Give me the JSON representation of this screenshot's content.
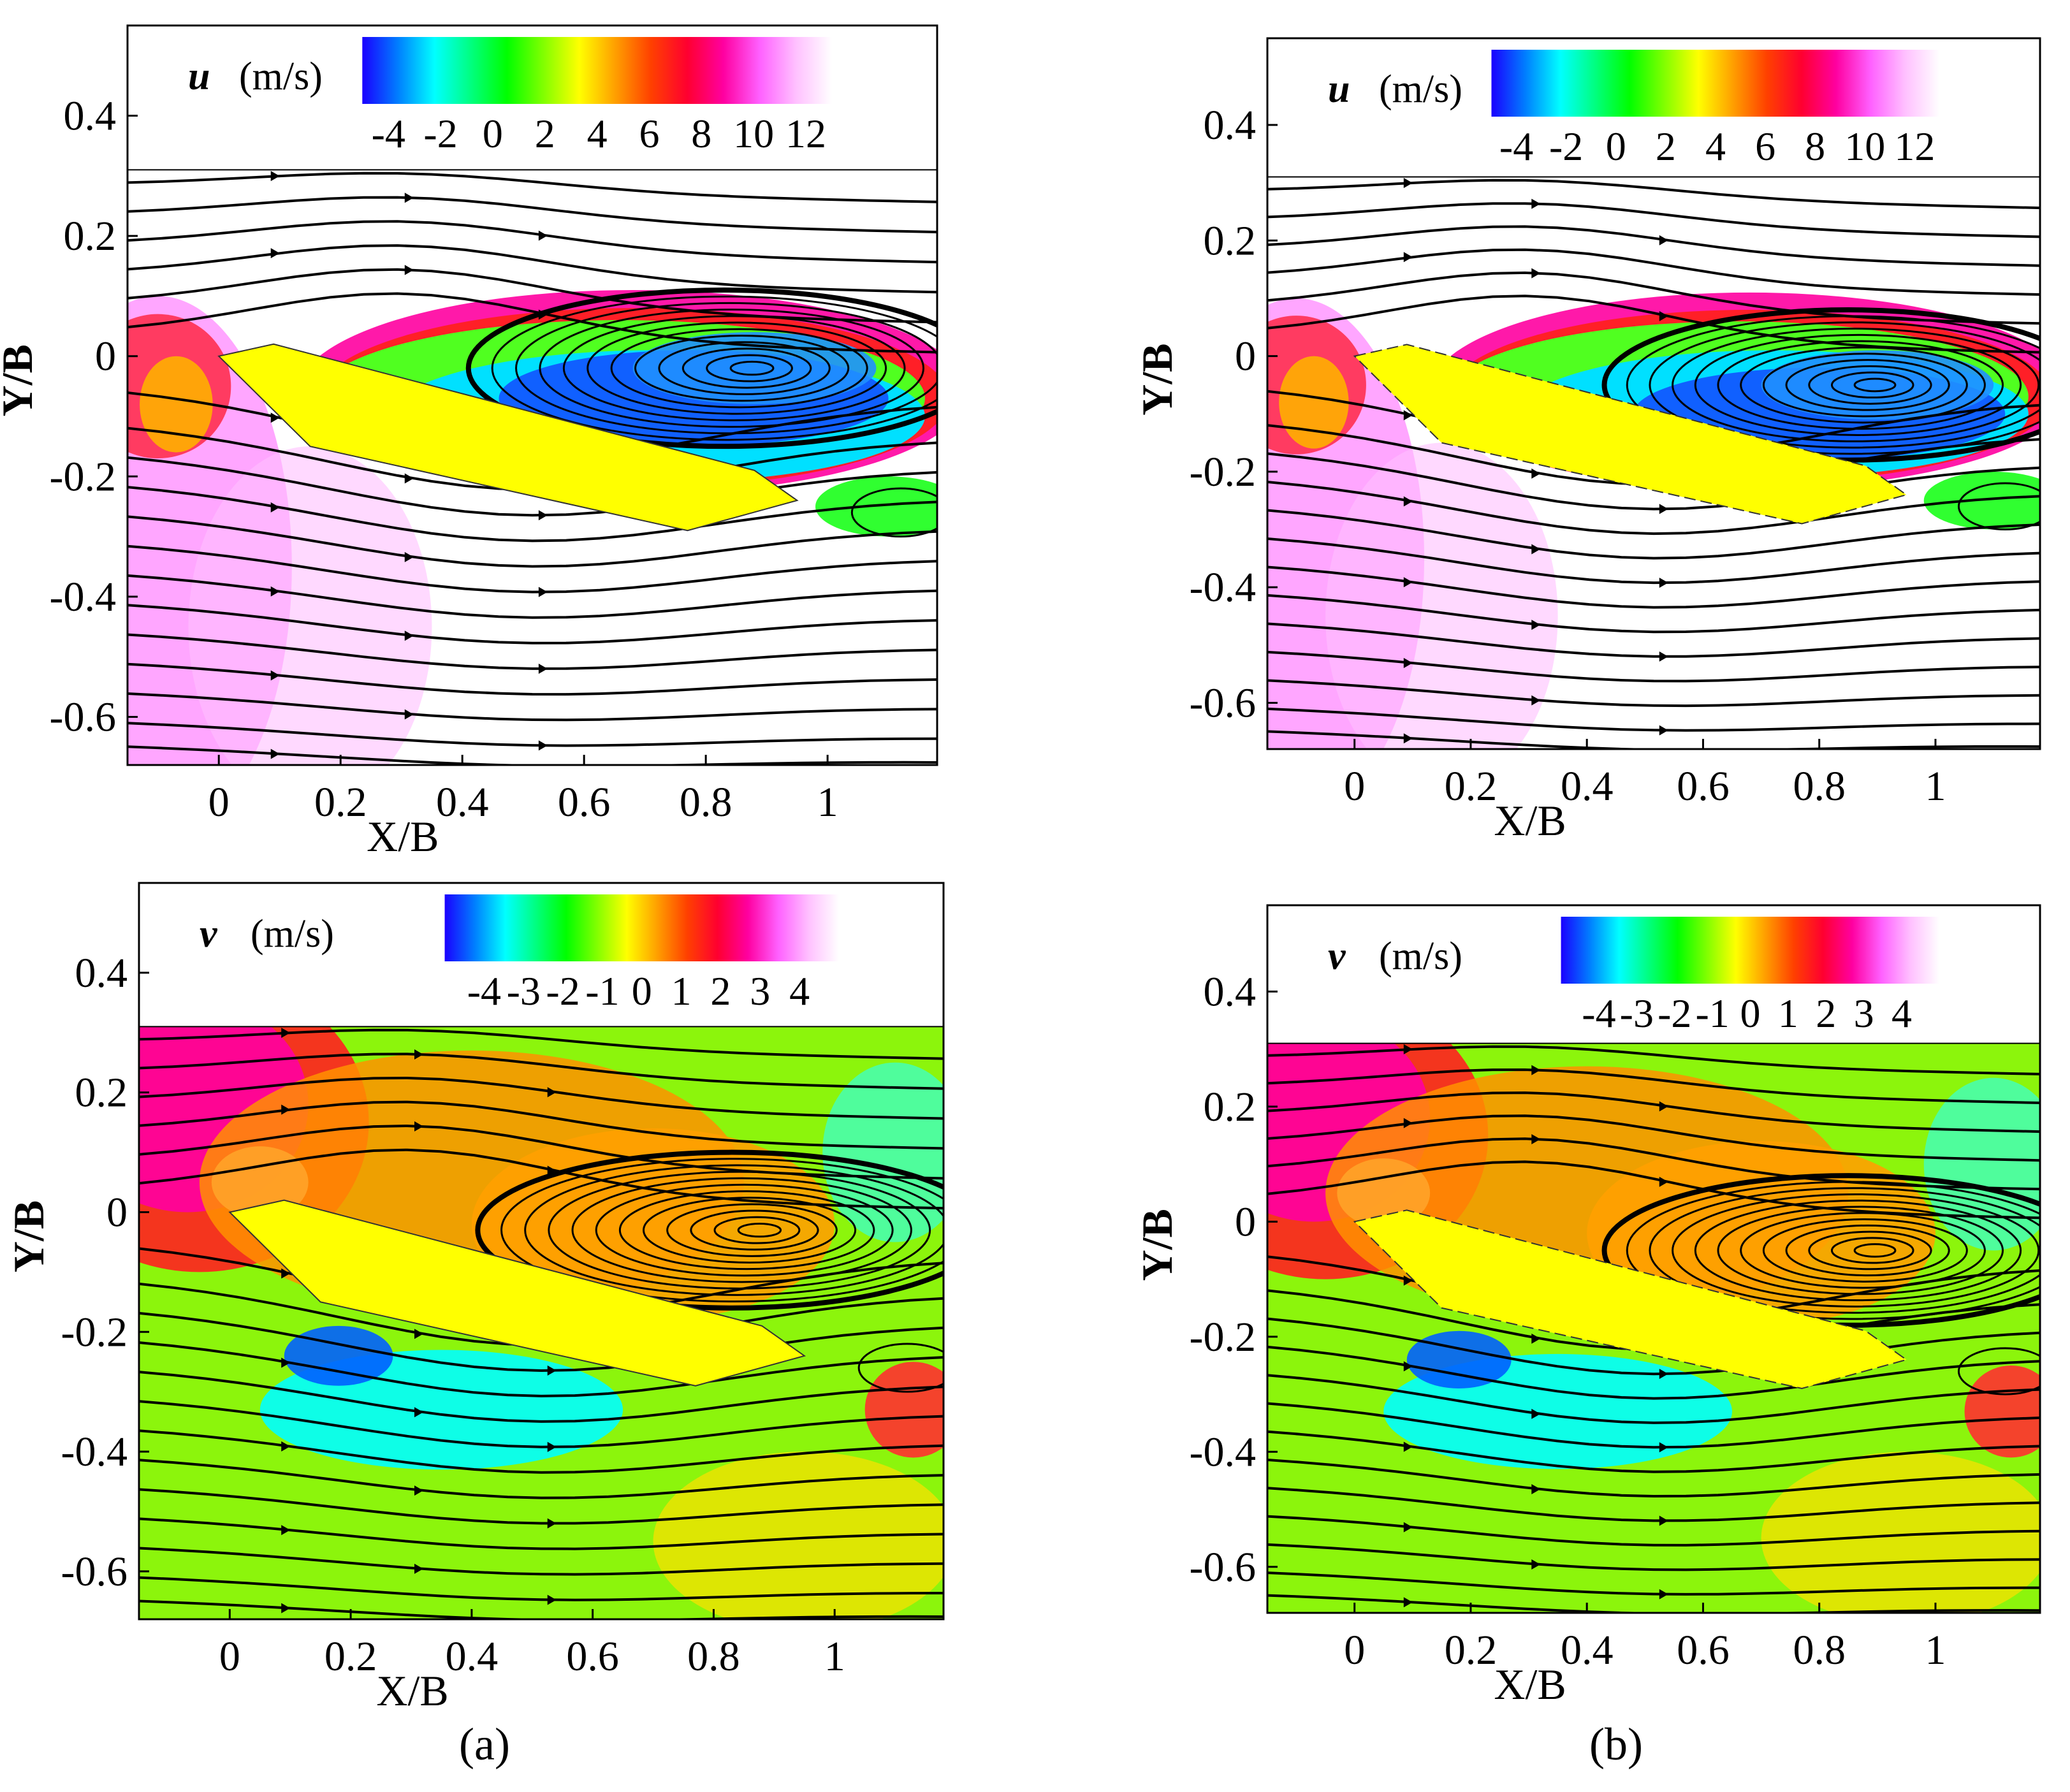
{
  "figure": {
    "caption_a": "(a)",
    "caption_b": "(b)",
    "caption_a_letter": "a",
    "caption_b_letter": "b"
  },
  "colors": {
    "body_fill": "#ffff00",
    "streamline": "#000000",
    "u_scale": [
      "#1a00ff",
      "#0080ff",
      "#00ffff",
      "#00ff80",
      "#00ff00",
      "#80ff00",
      "#ffff00",
      "#ffa000",
      "#ff4000",
      "#ff0030",
      "#ff00a0",
      "#ff60ff",
      "#ffc0ff",
      "#ffffff"
    ],
    "v_scale": [
      "#1a00ff",
      "#0080ff",
      "#00ffff",
      "#00ff80",
      "#00ff00",
      "#80ff00",
      "#ffff00",
      "#ffa000",
      "#ff4000",
      "#ff0030",
      "#ff00a0",
      "#ff60ff",
      "#ffc0ff",
      "#ffffff"
    ]
  },
  "chart_data": [
    {
      "type": "heatmap",
      "panel": "a",
      "variable": "u",
      "unit": "(m/s)",
      "xlabel": "X/B",
      "ylabel": "Y/B",
      "xlim": [
        -0.15,
        1.18
      ],
      "ylim": [
        -0.68,
        0.55
      ],
      "xticks": [
        "0",
        "0.2",
        "0.4",
        "0.6",
        "0.8",
        "1"
      ],
      "xtick_values": [
        0,
        0.2,
        0.4,
        0.6,
        0.8,
        1
      ],
      "yticks": [
        "0.4",
        "0.2",
        "0",
        "-0.2",
        "-0.4",
        "-0.6"
      ],
      "ytick_values": [
        0.4,
        0.2,
        0,
        -0.2,
        -0.4,
        -0.6
      ],
      "colorbar_ticks": [
        "-4",
        "-2",
        "0",
        "2",
        "4",
        "6",
        "8",
        "10",
        "12"
      ],
      "colorbar_range": [
        -5,
        13
      ],
      "body_outline": [
        [
          0,
          0.0
        ],
        [
          0.09,
          0.02
        ],
        [
          0.88,
          -0.19
        ],
        [
          0.95,
          -0.24
        ],
        [
          0.77,
          -0.29
        ],
        [
          0.15,
          -0.15
        ]
      ],
      "vortex_center": [
        0.88,
        -0.02
      ]
    },
    {
      "type": "heatmap",
      "panel": "b",
      "variable": "u",
      "unit": "(m/s)",
      "xlabel": "X/B",
      "ylabel": "Y/B",
      "xlim": [
        -0.15,
        1.18
      ],
      "ylim": [
        -0.68,
        0.55
      ],
      "xticks": [
        "0",
        "0.2",
        "0.4",
        "0.6",
        "0.8",
        "1"
      ],
      "xtick_values": [
        0,
        0.2,
        0.4,
        0.6,
        0.8,
        1
      ],
      "yticks": [
        "0.4",
        "0.2",
        "0",
        "-0.2",
        "-0.4",
        "-0.6"
      ],
      "ytick_values": [
        0.4,
        0.2,
        0,
        -0.2,
        -0.4,
        -0.6
      ],
      "colorbar_ticks": [
        "-4",
        "-2",
        "0",
        "2",
        "4",
        "6",
        "8",
        "10",
        "12"
      ],
      "colorbar_range": [
        -5,
        13
      ],
      "body_outline": [
        [
          0,
          0.0
        ],
        [
          0.09,
          0.02
        ],
        [
          0.88,
          -0.19
        ],
        [
          0.95,
          -0.24
        ],
        [
          0.77,
          -0.29
        ],
        [
          0.15,
          -0.15
        ]
      ],
      "vortex_center": [
        0.9,
        -0.05
      ]
    },
    {
      "type": "heatmap",
      "panel": "a",
      "variable": "v",
      "unit": "(m/s)",
      "xlabel": "X/B",
      "ylabel": "Y/B",
      "xlim": [
        -0.15,
        1.18
      ],
      "ylim": [
        -0.68,
        0.55
      ],
      "xticks": [
        "0",
        "0.2",
        "0.4",
        "0.6",
        "0.8",
        "1"
      ],
      "xtick_values": [
        0,
        0.2,
        0.4,
        0.6,
        0.8,
        1
      ],
      "yticks": [
        "0.4",
        "0.2",
        "0",
        "-0.2",
        "-0.4",
        "-0.6"
      ],
      "ytick_values": [
        0.4,
        0.2,
        0,
        -0.2,
        -0.4,
        -0.6
      ],
      "colorbar_ticks": [
        "-4",
        "-3",
        "-2",
        "-1",
        "0",
        "1",
        "2",
        "3",
        "4"
      ],
      "colorbar_range": [
        -5,
        5
      ],
      "body_outline": [
        [
          0,
          0.0
        ],
        [
          0.09,
          0.02
        ],
        [
          0.88,
          -0.19
        ],
        [
          0.95,
          -0.24
        ],
        [
          0.77,
          -0.29
        ],
        [
          0.15,
          -0.15
        ]
      ],
      "vortex_center": [
        0.88,
        -0.03
      ]
    },
    {
      "type": "heatmap",
      "panel": "b",
      "variable": "v",
      "unit": "(m/s)",
      "xlabel": "X/B",
      "ylabel": "Y/B",
      "xlim": [
        -0.15,
        1.18
      ],
      "ylim": [
        -0.68,
        0.55
      ],
      "xticks": [
        "0",
        "0.2",
        "0.4",
        "0.6",
        "0.8",
        "1"
      ],
      "xtick_values": [
        0,
        0.2,
        0.4,
        0.6,
        0.8,
        1
      ],
      "yticks": [
        "0.4",
        "0.2",
        "0",
        "-0.2",
        "-0.4",
        "-0.6"
      ],
      "ytick_values": [
        0.4,
        0.2,
        0,
        -0.2,
        -0.4,
        -0.6
      ],
      "colorbar_ticks": [
        "-4",
        "-3",
        "-2",
        "-1",
        "0",
        "1",
        "2",
        "3",
        "4"
      ],
      "colorbar_range": [
        -5,
        5
      ],
      "body_outline": [
        [
          0,
          0.0
        ],
        [
          0.09,
          0.02
        ],
        [
          0.88,
          -0.19
        ],
        [
          0.95,
          -0.24
        ],
        [
          0.77,
          -0.29
        ],
        [
          0.15,
          -0.15
        ]
      ],
      "vortex_center": [
        0.9,
        -0.05
      ]
    }
  ]
}
